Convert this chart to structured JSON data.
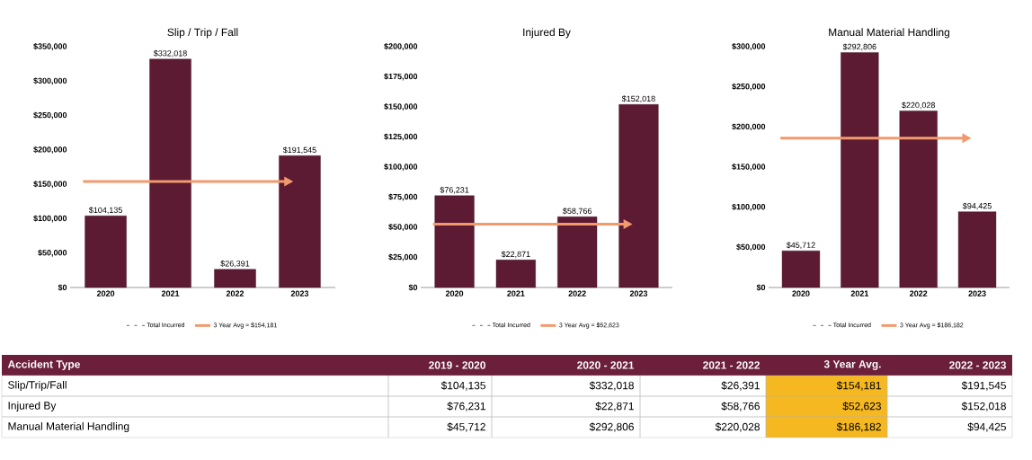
{
  "chart_data": [
    {
      "type": "bar",
      "title": "Slip / Trip / Fall",
      "categories": [
        "2020",
        "2021",
        "2022",
        "2023"
      ],
      "series": [
        {
          "name": "Total Incurred",
          "color": "#5c1a33",
          "values": [
            104135,
            332018,
            26391,
            191545
          ],
          "value_labels": [
            "$104,135",
            "$332,018",
            "$26,391",
            "$191,545"
          ]
        }
      ],
      "ylim": [
        0,
        350000
      ],
      "yticks": [
        {
          "value": 0,
          "label": "$0"
        },
        {
          "value": 50000,
          "label": "$50,000"
        },
        {
          "value": 100000,
          "label": "$100,000"
        },
        {
          "value": 150000,
          "label": "$150,000"
        },
        {
          "value": 200000,
          "label": "$200,000"
        },
        {
          "value": 250000,
          "label": "$250,000"
        },
        {
          "value": 300000,
          "label": "$300,000"
        },
        {
          "value": 350000,
          "label": "$350,000"
        }
      ],
      "ref_lines": [
        {
          "axis": "y",
          "value": 154181,
          "label": "3 Year Avg = $154,181",
          "color": "#f29a6e"
        }
      ],
      "legend": "bottom"
    },
    {
      "type": "bar",
      "title": "Injured By",
      "categories": [
        "2020",
        "2021",
        "2022",
        "2023"
      ],
      "series": [
        {
          "name": "Total Incurred",
          "color": "#5c1a33",
          "values": [
            76231,
            22871,
            58766,
            152018
          ],
          "value_labels": [
            "$76,231",
            "$22,871",
            "$58,766",
            "$152,018"
          ]
        }
      ],
      "ylim": [
        0,
        200000
      ],
      "yticks": [
        {
          "value": 0,
          "label": "$0"
        },
        {
          "value": 25000,
          "label": "$25,000"
        },
        {
          "value": 50000,
          "label": "$50,000"
        },
        {
          "value": 75000,
          "label": "$75,000"
        },
        {
          "value": 100000,
          "label": "$100,000"
        },
        {
          "value": 125000,
          "label": "$125,000"
        },
        {
          "value": 150000,
          "label": "$150,000"
        },
        {
          "value": 175000,
          "label": "$175,000"
        },
        {
          "value": 200000,
          "label": "$200,000"
        }
      ],
      "ref_lines": [
        {
          "axis": "y",
          "value": 52623,
          "label": "3 Year Avg = $52,623",
          "color": "#f29a6e"
        }
      ],
      "legend": "bottom"
    },
    {
      "type": "bar",
      "title": "Manual Material Handling",
      "categories": [
        "2020",
        "2021",
        "2022",
        "2023"
      ],
      "series": [
        {
          "name": "Total Incurred",
          "color": "#5c1a33",
          "values": [
            45712,
            292806,
            220028,
            94425
          ],
          "value_labels": [
            "$45,712",
            "$292,806",
            "$220,028",
            "$94,425"
          ]
        }
      ],
      "ylim": [
        0,
        300000
      ],
      "yticks": [
        {
          "value": 0,
          "label": "$0"
        },
        {
          "value": 50000,
          "label": "$50,000"
        },
        {
          "value": 100000,
          "label": "$100,000"
        },
        {
          "value": 150000,
          "label": "$150,000"
        },
        {
          "value": 200000,
          "label": "$200,000"
        },
        {
          "value": 250000,
          "label": "$250,000"
        },
        {
          "value": 300000,
          "label": "$300,000"
        }
      ],
      "ref_lines": [
        {
          "axis": "y",
          "value": 186182,
          "label": "3 Year Avg = $186,182",
          "color": "#f29a6e"
        }
      ],
      "legend": "bottom"
    },
    {
      "type": "other",
      "categories": [
        "Accident Type",
        "2019 - 2020",
        "2020 - 2021",
        "2021 - 2022",
        "3 Year Avg.",
        "2022 - 2023"
      ],
      "annotations": [
        "Slip/Trip/Fall",
        "$104,135",
        "$332,018",
        "$26,391",
        "$154,181",
        "$191,545",
        "Injured By",
        "$76,231",
        "$22,871",
        "$58,766",
        "$52,623",
        "$152,018",
        "Manual Material Handling",
        "$45,712",
        "$292,806",
        "$220,028",
        "$186,182",
        "$94,425"
      ]
    }
  ]
}
